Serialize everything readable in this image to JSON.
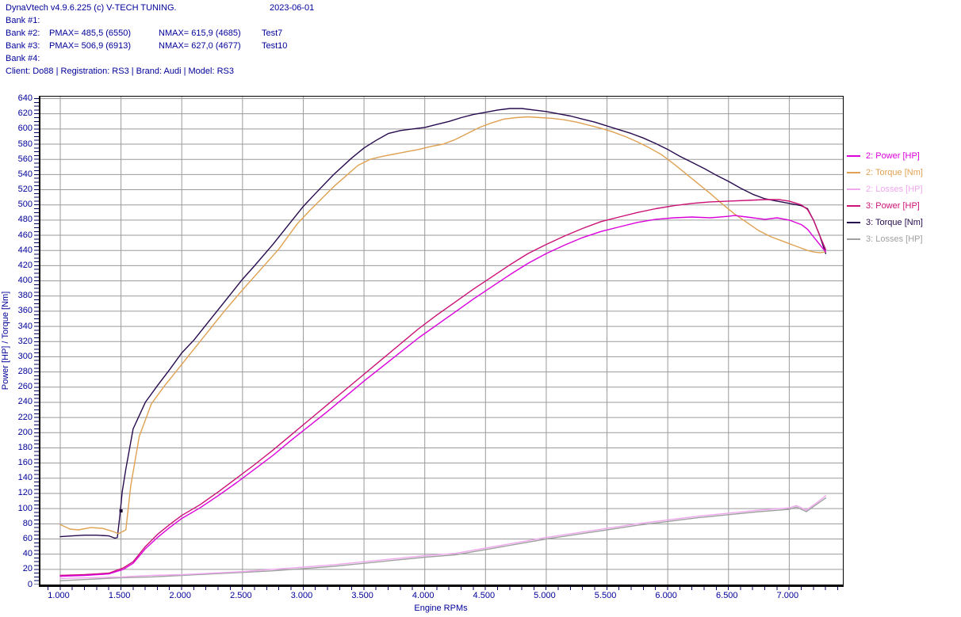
{
  "header": {
    "app_title": "DynaVtech v4.9.6.225 (c) V-TECH TUNING.",
    "date": "2023-06-01",
    "rows": [
      {
        "label": "Bank #1:",
        "pmax": "",
        "nmax": "",
        "test": ""
      },
      {
        "label": "Bank #2:",
        "pmax": "PMAX= 485,5 (6550)",
        "nmax": "NMAX= 615,9 (4685)",
        "test": "Test7"
      },
      {
        "label": "Bank #3:",
        "pmax": "PMAX= 506,9 (6913)",
        "nmax": "NMAX= 627,0 (4677)",
        "test": "Test10"
      },
      {
        "label": "Bank #4:",
        "pmax": "",
        "nmax": "",
        "test": ""
      }
    ],
    "client_line": "Client: Do88 | Registration: RS3 | Brand: Audi | Model: RS3"
  },
  "colors": {
    "text": "#000099",
    "grid": "#9A9A9A",
    "axis_border": "#000000",
    "minor_ticks": "#000066"
  },
  "chart_data": {
    "type": "line",
    "title": "",
    "xlabel": "Engine RPMs",
    "ylabel": "Power [HP] / Torque [Nm]",
    "xlim": [
      1000,
      7440
    ],
    "ylim": [
      0,
      640
    ],
    "y_tick_step": 20,
    "grid": true,
    "legend_position": "right",
    "x_ticks": [
      1000,
      1500,
      2000,
      2500,
      3000,
      3500,
      4000,
      4500,
      5000,
      5500,
      6000,
      6500,
      7000
    ],
    "x_tick_labels": [
      "1.000",
      "1.500",
      "2.000",
      "2.500",
      "3.000",
      "3.500",
      "4.000",
      "4.500",
      "5.000",
      "5.500",
      "6.000",
      "6.500",
      "7.000"
    ],
    "marker": {
      "series": "3: Torque [Nm]",
      "rpm": 1500,
      "value": 97
    },
    "series": [
      {
        "name": "2: Power [HP]",
        "color": "#DB00DB",
        "x": [
          1000,
          1200,
          1400,
          1520,
          1600,
          1700,
          1800,
          1900,
          2000,
          2150,
          2300,
          2450,
          2600,
          2750,
          2900,
          3050,
          3200,
          3350,
          3500,
          3650,
          3800,
          3950,
          4100,
          4250,
          4400,
          4550,
          4700,
          4850,
          5000,
          5150,
          5300,
          5450,
          5600,
          5750,
          5900,
          6050,
          6200,
          6350,
          6500,
          6550,
          6650,
          6800,
          6900,
          7000,
          7100,
          7150,
          7200,
          7250,
          7300
        ],
        "y": [
          11,
          12,
          14,
          20,
          28,
          47,
          62,
          75,
          87,
          101,
          117,
          134,
          152,
          170,
          190,
          209,
          228,
          248,
          268,
          287,
          306,
          325,
          342,
          359,
          376,
          392,
          408,
          423,
          436,
          447,
          457,
          465,
          471,
          477,
          481,
          483,
          484,
          483,
          485,
          486,
          484,
          481,
          483,
          480,
          474,
          468,
          458,
          448,
          438
        ]
      },
      {
        "name": "2: Torque [Nm]",
        "color": "#DFA152",
        "x": [
          1000,
          1080,
          1150,
          1250,
          1350,
          1430,
          1480,
          1540,
          1580,
          1650,
          1750,
          1850,
          1950,
          2050,
          2200,
          2350,
          2500,
          2650,
          2800,
          2950,
          3050,
          3150,
          3250,
          3350,
          3450,
          3550,
          3650,
          3750,
          3850,
          3950,
          4050,
          4150,
          4250,
          4350,
          4450,
          4550,
          4650,
          4750,
          4850,
          4950,
          5050,
          5150,
          5250,
          5350,
          5450,
          5550,
          5650,
          5750,
          5850,
          5950,
          6050,
          6150,
          6250,
          6350,
          6450,
          6550,
          6650,
          6750,
          6850,
          6950,
          7050,
          7150,
          7200,
          7250,
          7300
        ],
        "y": [
          79,
          73,
          72,
          75,
          74,
          70,
          67,
          72,
          130,
          195,
          238,
          260,
          280,
          300,
          330,
          360,
          388,
          415,
          442,
          475,
          492,
          508,
          524,
          538,
          552,
          560,
          564,
          567,
          570,
          573,
          577,
          580,
          586,
          594,
          602,
          608,
          613,
          615,
          616,
          615,
          614,
          612,
          609,
          605,
          601,
          596,
          590,
          583,
          575,
          566,
          554,
          541,
          528,
          515,
          501,
          488,
          477,
          466,
          458,
          452,
          446,
          440,
          438,
          437,
          438
        ]
      },
      {
        "name": "2: Losses [HP]",
        "color": "#F0A8EE",
        "x": [
          1000,
          1250,
          1500,
          1750,
          2000,
          2250,
          2500,
          2750,
          3000,
          3250,
          3500,
          3750,
          4000,
          4250,
          4500,
          4750,
          5000,
          5250,
          5500,
          5750,
          6000,
          6250,
          6500,
          6750,
          7000,
          7060,
          7140,
          7220,
          7300
        ],
        "y": [
          8,
          9,
          10,
          12,
          13,
          15,
          17,
          20,
          23,
          26,
          30,
          34,
          38,
          41,
          48,
          55,
          62,
          68,
          74,
          80,
          85,
          90,
          94,
          98,
          101,
          104,
          98,
          107,
          117
        ]
      },
      {
        "name": "3: Power [HP]",
        "color": "#CC1177",
        "x": [
          1000,
          1200,
          1400,
          1520,
          1600,
          1700,
          1800,
          1900,
          2000,
          2150,
          2300,
          2450,
          2600,
          2750,
          2900,
          3050,
          3200,
          3350,
          3500,
          3650,
          3800,
          3950,
          4100,
          4250,
          4400,
          4550,
          4700,
          4850,
          5000,
          5150,
          5300,
          5450,
          5600,
          5750,
          5900,
          6050,
          6200,
          6350,
          6500,
          6650,
          6800,
          6913,
          7000,
          7100,
          7150,
          7200,
          7250,
          7300
        ],
        "y": [
          12,
          13,
          15,
          22,
          30,
          50,
          66,
          79,
          91,
          105,
          122,
          140,
          158,
          177,
          197,
          217,
          237,
          257,
          277,
          297,
          317,
          337,
          355,
          372,
          389,
          405,
          421,
          436,
          448,
          459,
          469,
          478,
          484,
          490,
          495,
          499,
          502,
          504,
          505,
          506,
          507,
          507,
          505,
          500,
          494,
          480,
          460,
          441
        ]
      },
      {
        "name": "3: Torque [Nm]",
        "color": "#260A4E",
        "x": [
          1000,
          1100,
          1200,
          1300,
          1400,
          1450,
          1470,
          1490,
          1510,
          1540,
          1600,
          1700,
          1800,
          1900,
          2000,
          2100,
          2250,
          2400,
          2500,
          2600,
          2750,
          2900,
          3000,
          3100,
          3250,
          3400,
          3500,
          3600,
          3700,
          3800,
          3900,
          4000,
          4100,
          4200,
          4300,
          4400,
          4500,
          4600,
          4700,
          4800,
          4900,
          5000,
          5100,
          5200,
          5300,
          5400,
          5500,
          5600,
          5700,
          5800,
          5900,
          6000,
          6100,
          6200,
          6300,
          6400,
          6500,
          6600,
          6700,
          6800,
          6900,
          7000,
          7100,
          7150,
          7200,
          7250,
          7300
        ],
        "y": [
          63,
          64,
          65,
          65,
          64,
          61,
          62,
          90,
          122,
          152,
          205,
          240,
          262,
          283,
          305,
          322,
          352,
          382,
          402,
          420,
          448,
          478,
          498,
          515,
          540,
          562,
          575,
          585,
          594,
          598,
          600,
          602,
          606,
          610,
          615,
          619,
          622,
          625,
          627,
          627,
          625,
          623,
          620,
          617,
          613,
          609,
          604,
          599,
          594,
          588,
          581,
          573,
          564,
          556,
          548,
          539,
          531,
          522,
          514,
          508,
          505,
          502,
          499,
          495,
          480,
          460,
          436
        ]
      },
      {
        "name": "3: Losses [HP]",
        "color": "#A0A0A0",
        "x": [
          1000,
          1250,
          1500,
          1750,
          2000,
          2250,
          2500,
          2750,
          3000,
          3250,
          3500,
          3750,
          4000,
          4250,
          4500,
          4750,
          5000,
          5250,
          5500,
          5750,
          6000,
          6250,
          6500,
          6750,
          7000,
          7060,
          7140,
          7220,
          7300
        ],
        "y": [
          5,
          7,
          9,
          10,
          12,
          14,
          16,
          18,
          21,
          24,
          28,
          32,
          36,
          39,
          46,
          53,
          60,
          66,
          72,
          78,
          83,
          88,
          92,
          96,
          99,
          102,
          96,
          105,
          114
        ]
      }
    ]
  }
}
